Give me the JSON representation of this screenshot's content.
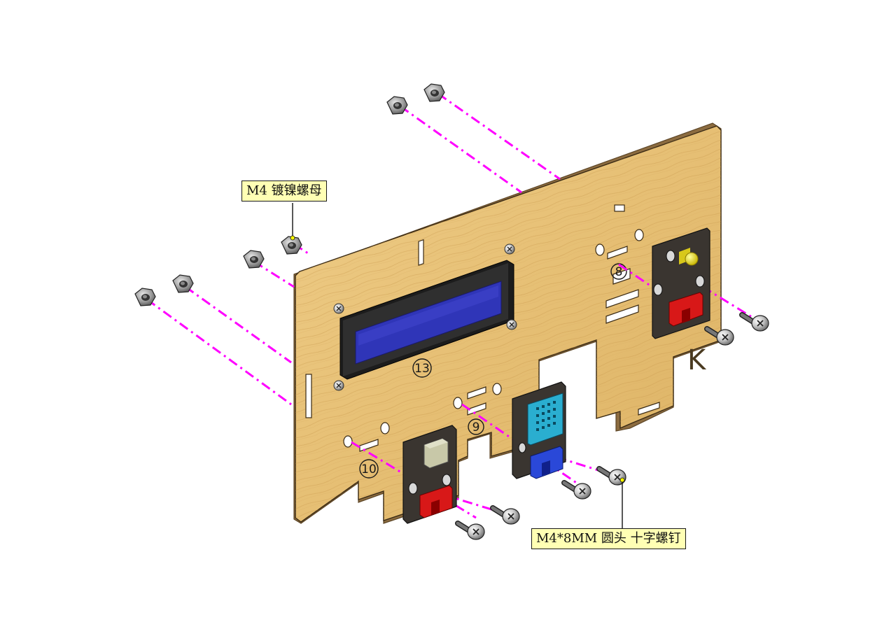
{
  "labels": {
    "nut": "M4 镀镍螺母",
    "screw": "M4*8MM 圆头 十字螺钉"
  },
  "board": {
    "numbers": [
      "13",
      "8",
      "9",
      "10"
    ],
    "mark": "K"
  },
  "colors": {
    "wood": "#e8c27a",
    "wood_edge": "#9a7b4f",
    "guide_line": "#ff00ff",
    "lcd_frame": "#2a2a2a",
    "lcd_screen": "#3333bb",
    "module_pcb": "#3a3530",
    "connector_red": "#d81818",
    "connector_blue": "#2a48d8",
    "sensor_body": "#2aaed0",
    "led_yellow": "#f0e020",
    "button_cap": "#c8c8a8",
    "callout_fill": "#ffffb4"
  },
  "icons": [
    "hex-nut-icon",
    "phillips-screw-icon"
  ]
}
